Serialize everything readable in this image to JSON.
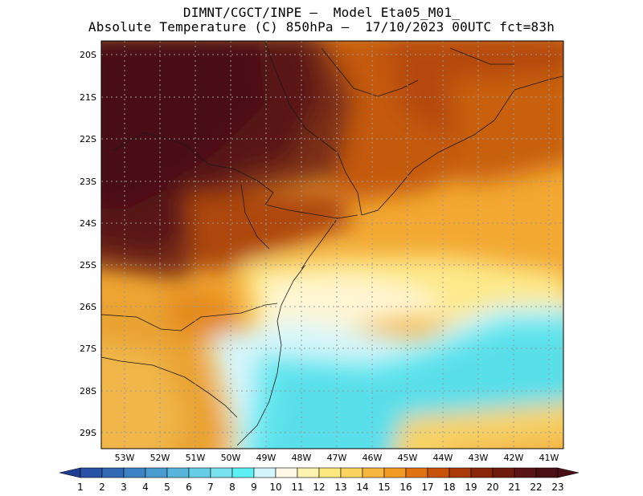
{
  "header": {
    "line1": "DIMNT/CGCT/INPE —  Model Eta05_M01_",
    "line2": "Absolute Temperature (C) 850hPa —  17/10/2023 00UTC fct=83h"
  },
  "map": {
    "lat_labels": [
      "20S",
      "21S",
      "22S",
      "23S",
      "24S",
      "25S",
      "26S",
      "27S",
      "28S",
      "29S"
    ],
    "lon_labels": [
      "53W",
      "52W",
      "51W",
      "50W",
      "49W",
      "48W",
      "47W",
      "46W",
      "45W",
      "44W",
      "43W",
      "42W",
      "41W"
    ]
  },
  "colorbar": {
    "labels": [
      "1",
      "2",
      "3",
      "4",
      "5",
      "6",
      "7",
      "8",
      "9",
      "10",
      "11",
      "12",
      "13",
      "14",
      "15",
      "16",
      "17",
      "18",
      "19",
      "20",
      "21",
      "22",
      "23"
    ],
    "colors": [
      "#1f3f94",
      "#2a52a6",
      "#3169b5",
      "#3c82c4",
      "#4a9cd0",
      "#58b6dc",
      "#66cde6",
      "#7ae2ee",
      "#5df0f5",
      "#d3f6fb",
      "#fff8e6",
      "#fff3b0",
      "#fde880",
      "#fad45f",
      "#f6b63f",
      "#f19a24",
      "#e0730f",
      "#c8520a",
      "#a93a08",
      "#8a2608",
      "#6e1a0c",
      "#5a1316",
      "#4a0f14"
    ]
  }
}
